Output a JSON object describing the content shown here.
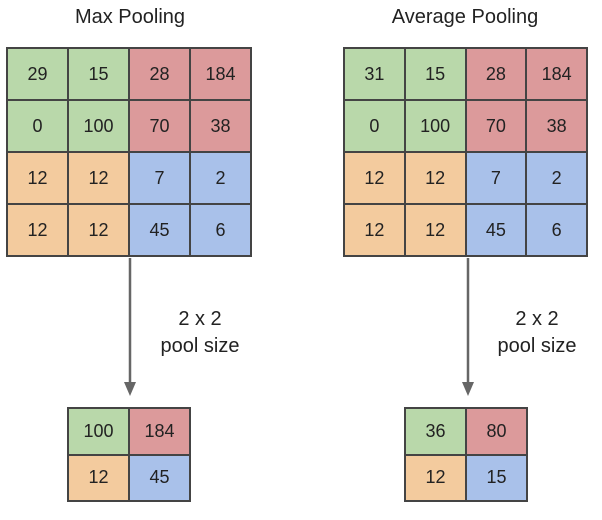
{
  "colors": {
    "green": "#b9d8aa",
    "red": "#dc9a9b",
    "orange": "#f3cb9e",
    "blue": "#a9c1ea"
  },
  "quadrant_colors": [
    [
      "green",
      "green",
      "red",
      "red"
    ],
    [
      "green",
      "green",
      "red",
      "red"
    ],
    [
      "orange",
      "orange",
      "blue",
      "blue"
    ],
    [
      "orange",
      "orange",
      "blue",
      "blue"
    ]
  ],
  "output_colors": [
    [
      "green",
      "red"
    ],
    [
      "orange",
      "blue"
    ]
  ],
  "panels": [
    {
      "title": "Max Pooling",
      "input": [
        [
          29,
          15,
          28,
          184
        ],
        [
          0,
          100,
          70,
          38
        ],
        [
          12,
          12,
          7,
          2
        ],
        [
          12,
          12,
          45,
          6
        ]
      ],
      "pool_label_line1": "2 x 2",
      "pool_label_line2": "pool size",
      "output": [
        [
          100,
          184
        ],
        [
          12,
          45
        ]
      ]
    },
    {
      "title": "Average Pooling",
      "input": [
        [
          31,
          15,
          28,
          184
        ],
        [
          0,
          100,
          70,
          38
        ],
        [
          12,
          12,
          7,
          2
        ],
        [
          12,
          12,
          45,
          6
        ]
      ],
      "pool_label_line1": "2 x 2",
      "pool_label_line2": "pool size",
      "output": [
        [
          36,
          80
        ],
        [
          12,
          15
        ]
      ]
    }
  ]
}
